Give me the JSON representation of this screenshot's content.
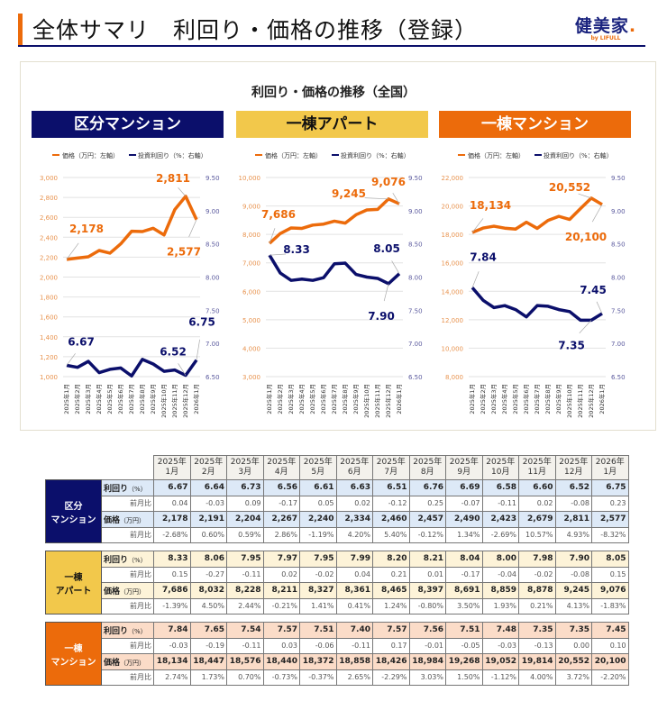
{
  "header": {
    "title": "全体サマリ　利回り・価格の推移（登録）",
    "logo_main": "健美家",
    "logo_dot": ".",
    "logo_sub": "by LIFULL"
  },
  "colors": {
    "navy": "#0b0f6b",
    "orange": "#ec6b0b",
    "yellow": "#f2c84b",
    "blue_light": "#dde9f7",
    "yellow_light": "#fdf3d8",
    "orange_light": "#fbdcc8"
  },
  "chart_title": "利回り・価格の推移（全国）",
  "chart_data": [
    {
      "type": "line",
      "title": "区分マンション",
      "panel_color": "#0b0f6b",
      "legend": [
        "価格（万円：左軸）",
        "投資利回り（%：右軸）"
      ],
      "categories": [
        "2025年1月",
        "2025年2月",
        "2025年3月",
        "2025年4月",
        "2025年5月",
        "2025年6月",
        "2025年7月",
        "2025年8月",
        "2025年9月",
        "2025年10月",
        "2025年11月",
        "2025年12月",
        "2026年1月"
      ],
      "y_left": {
        "range": [
          1000,
          3000
        ],
        "step": 200,
        "ticks": [
          "1,000",
          "1,200",
          "1,400",
          "1,600",
          "1,800",
          "2,000",
          "2,200",
          "2,400",
          "2,600",
          "2,800",
          "3,000"
        ]
      },
      "y_right": {
        "range": [
          6.5,
          9.5
        ],
        "step": 0.5,
        "ticks": [
          "6.50",
          "7.00",
          "7.50",
          "8.00",
          "8.50",
          "9.00",
          "9.50"
        ]
      },
      "series": [
        {
          "name": "価格（万円：左軸）",
          "axis": "left",
          "color": "#ec6b0b",
          "values": [
            2178,
            2191,
            2204,
            2267,
            2240,
            2334,
            2460,
            2457,
            2490,
            2423,
            2679,
            2811,
            2577
          ],
          "labels": {
            "0": "2,178",
            "11": "2,811",
            "12": "2,577"
          }
        },
        {
          "name": "投資利回り（%：右軸）",
          "axis": "right",
          "color": "#0b0f6b",
          "values": [
            6.67,
            6.64,
            6.73,
            6.56,
            6.61,
            6.63,
            6.51,
            6.76,
            6.69,
            6.58,
            6.6,
            6.52,
            6.75
          ],
          "labels": {
            "0": "6.67",
            "11": "6.52",
            "12": "6.75"
          }
        }
      ],
      "grid": true
    },
    {
      "type": "line",
      "title": "一棟アパート",
      "panel_color": "#f2c84b",
      "legend": [
        "価格（万円：左軸）",
        "投資利回り（%：右軸）"
      ],
      "categories": [
        "2025年1月",
        "2025年2月",
        "2025年3月",
        "2025年4月",
        "2025年5月",
        "2025年6月",
        "2025年7月",
        "2025年8月",
        "2025年9月",
        "2025年10月",
        "2025年11月",
        "2025年12月",
        "2026年1月"
      ],
      "y_left": {
        "range": [
          3000,
          10000
        ],
        "step": 1000,
        "ticks": [
          "3,000",
          "4,000",
          "5,000",
          "6,000",
          "7,000",
          "8,000",
          "9,000",
          "10,000"
        ]
      },
      "y_right": {
        "range": [
          6.5,
          9.5
        ],
        "step": 0.5,
        "ticks": [
          "6.50",
          "7.00",
          "7.50",
          "8.00",
          "8.50",
          "9.00",
          "9.50"
        ]
      },
      "series": [
        {
          "name": "価格（万円：左軸）",
          "axis": "left",
          "color": "#ec6b0b",
          "values": [
            7686,
            8032,
            8228,
            8211,
            8327,
            8361,
            8465,
            8397,
            8691,
            8859,
            8878,
            9245,
            9076
          ],
          "labels": {
            "0": "7,686",
            "11": "9,245",
            "12": "9,076"
          }
        },
        {
          "name": "投資利回り（%：右軸）",
          "axis": "right",
          "color": "#0b0f6b",
          "values": [
            8.33,
            8.06,
            7.95,
            7.97,
            7.95,
            7.99,
            8.2,
            8.21,
            8.04,
            8.0,
            7.98,
            7.9,
            8.05
          ],
          "labels": {
            "0": "8.33",
            "11": "7.90",
            "12": "8.05"
          }
        }
      ],
      "grid": true
    },
    {
      "type": "line",
      "title": "一棟マンション",
      "panel_color": "#ec6b0b",
      "legend": [
        "価格（万円：左軸）",
        "投資利回り（%：右軸）"
      ],
      "categories": [
        "2025年1月",
        "2025年2月",
        "2025年3月",
        "2025年4月",
        "2025年5月",
        "2025年6月",
        "2025年7月",
        "2025年8月",
        "2025年9月",
        "2025年10月",
        "2025年11月",
        "2025年12月",
        "2026年1月"
      ],
      "y_left": {
        "range": [
          8000,
          22000
        ],
        "step": 2000,
        "ticks": [
          "8,000",
          "10,000",
          "12,000",
          "14,000",
          "16,000",
          "18,000",
          "20,000",
          "22,000"
        ]
      },
      "y_right": {
        "range": [
          6.5,
          9.5
        ],
        "step": 0.5,
        "ticks": [
          "6.50",
          "7.00",
          "7.50",
          "8.00",
          "8.50",
          "9.00",
          "9.50"
        ]
      },
      "series": [
        {
          "name": "価格（万円：左軸）",
          "axis": "left",
          "color": "#ec6b0b",
          "values": [
            18134,
            18447,
            18576,
            18440,
            18372,
            18858,
            18426,
            18984,
            19268,
            19052,
            19814,
            20552,
            20100
          ],
          "labels": {
            "0": "18,134",
            "11": "20,552",
            "12": "20,100"
          }
        },
        {
          "name": "投資利回り（%：右軸）",
          "axis": "right",
          "color": "#0b0f6b",
          "values": [
            7.84,
            7.65,
            7.54,
            7.57,
            7.51,
            7.4,
            7.57,
            7.56,
            7.51,
            7.48,
            7.35,
            7.35,
            7.45
          ],
          "labels": {
            "0": "7.84",
            "11": "7.35",
            "12": "7.45"
          }
        }
      ],
      "grid": true
    }
  ],
  "table": {
    "months": [
      {
        "y": "2025年",
        "m": "1月"
      },
      {
        "y": "2025年",
        "m": "2月"
      },
      {
        "y": "2025年",
        "m": "3月"
      },
      {
        "y": "2025年",
        "m": "4月"
      },
      {
        "y": "2025年",
        "m": "5月"
      },
      {
        "y": "2025年",
        "m": "6月"
      },
      {
        "y": "2025年",
        "m": "7月"
      },
      {
        "y": "2025年",
        "m": "8月"
      },
      {
        "y": "2025年",
        "m": "9月"
      },
      {
        "y": "2025年",
        "m": "10月"
      },
      {
        "y": "2025年",
        "m": "11月"
      },
      {
        "y": "2025年",
        "m": "12月"
      },
      {
        "y": "2026年",
        "m": "1月"
      }
    ],
    "groups": [
      {
        "l1": "区分",
        "l2": "マンション",
        "color": "#0b0f6b",
        "light": "#dde9f7",
        "rows": [
          {
            "label": "利回り",
            "unit": "（%）",
            "values": [
              "6.67",
              "6.64",
              "6.73",
              "6.56",
              "6.61",
              "6.63",
              "6.51",
              "6.76",
              "6.69",
              "6.58",
              "6.60",
              "6.52",
              "6.75"
            ]
          },
          {
            "label": "前月比",
            "values": [
              "0.04",
              "-0.03",
              "0.09",
              "-0.17",
              "0.05",
              "0.02",
              "-0.12",
              "0.25",
              "-0.07",
              "-0.11",
              "0.02",
              "-0.08",
              "0.23"
            ]
          },
          {
            "label": "価格",
            "unit": "（万円）",
            "values": [
              "2,178",
              "2,191",
              "2,204",
              "2,267",
              "2,240",
              "2,334",
              "2,460",
              "2,457",
              "2,490",
              "2,423",
              "2,679",
              "2,811",
              "2,577"
            ]
          },
          {
            "label": "前月比",
            "values": [
              "-2.68%",
              "0.60%",
              "0.59%",
              "2.86%",
              "-1.19%",
              "4.20%",
              "5.40%",
              "-0.12%",
              "1.34%",
              "-2.69%",
              "10.57%",
              "4.93%",
              "-8.32%"
            ]
          }
        ]
      },
      {
        "l1": "一棟",
        "l2": "アパート",
        "color": "#f2c84b",
        "light": "#fdf3d8",
        "rows": [
          {
            "label": "利回り",
            "unit": "（%）",
            "values": [
              "8.33",
              "8.06",
              "7.95",
              "7.97",
              "7.95",
              "7.99",
              "8.20",
              "8.21",
              "8.04",
              "8.00",
              "7.98",
              "7.90",
              "8.05"
            ]
          },
          {
            "label": "前月比",
            "values": [
              "0.15",
              "-0.27",
              "-0.11",
              "0.02",
              "-0.02",
              "0.04",
              "0.21",
              "0.01",
              "-0.17",
              "-0.04",
              "-0.02",
              "-0.08",
              "0.15"
            ]
          },
          {
            "label": "価格",
            "unit": "（万円）",
            "values": [
              "7,686",
              "8,032",
              "8,228",
              "8,211",
              "8,327",
              "8,361",
              "8,465",
              "8,397",
              "8,691",
              "8,859",
              "8,878",
              "9,245",
              "9,076"
            ]
          },
          {
            "label": "前月比",
            "values": [
              "-1.39%",
              "4.50%",
              "2.44%",
              "-0.21%",
              "1.41%",
              "0.41%",
              "1.24%",
              "-0.80%",
              "3.50%",
              "1.93%",
              "0.21%",
              "4.13%",
              "-1.83%"
            ]
          }
        ]
      },
      {
        "l1": "一棟",
        "l2": "マンション",
        "color": "#ec6b0b",
        "light": "#fbdcc8",
        "rows": [
          {
            "label": "利回り",
            "unit": "（%）",
            "values": [
              "7.84",
              "7.65",
              "7.54",
              "7.57",
              "7.51",
              "7.40",
              "7.57",
              "7.56",
              "7.51",
              "7.48",
              "7.35",
              "7.35",
              "7.45"
            ]
          },
          {
            "label": "前月比",
            "values": [
              "-0.03",
              "-0.19",
              "-0.11",
              "0.03",
              "-0.06",
              "-0.11",
              "0.17",
              "-0.01",
              "-0.05",
              "-0.03",
              "-0.13",
              "0.00",
              "0.10"
            ]
          },
          {
            "label": "価格",
            "unit": "（万円）",
            "values": [
              "18,134",
              "18,447",
              "18,576",
              "18,440",
              "18,372",
              "18,858",
              "18,426",
              "18,984",
              "19,268",
              "19,052",
              "19,814",
              "20,552",
              "20,100"
            ]
          },
          {
            "label": "前月比",
            "values": [
              "2.74%",
              "1.73%",
              "0.70%",
              "-0.73%",
              "-0.37%",
              "2.65%",
              "-2.29%",
              "3.03%",
              "1.50%",
              "-1.12%",
              "4.00%",
              "3.72%",
              "-2.20%"
            ]
          }
        ]
      }
    ]
  }
}
